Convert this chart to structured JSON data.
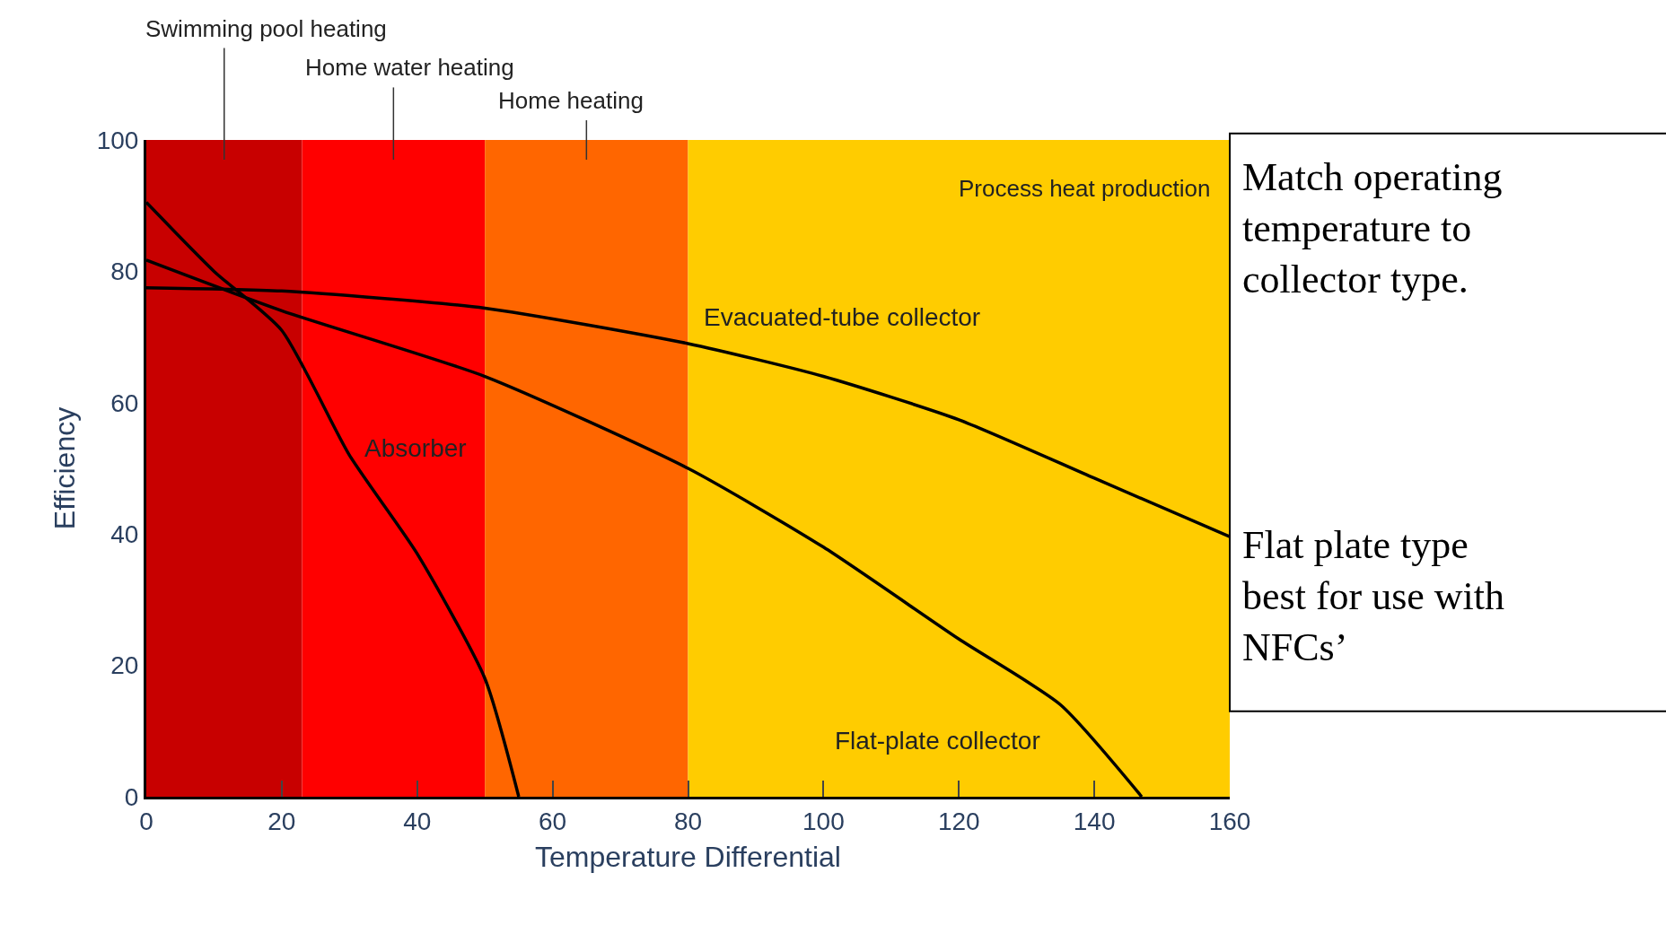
{
  "chart_data": {
    "type": "line",
    "xlabel": "Temperature Differential",
    "ylabel": "Efficiency",
    "xlim": [
      0,
      160
    ],
    "xticks": [
      0,
      20,
      40,
      60,
      80,
      100,
      120,
      140,
      160
    ],
    "ylim": [
      0,
      100
    ],
    "yticks": [
      0,
      20,
      40,
      60,
      80,
      100
    ],
    "grid": false,
    "marker": "none",
    "line_style": "solid",
    "series": [
      {
        "color": "#000000",
        "x": [
          0,
          10,
          20,
          30,
          40,
          50,
          55
        ],
        "values": [
          90.5,
          80,
          71,
          52,
          37,
          18,
          0
        ]
      },
      {
        "color": "#000000",
        "x": [
          0,
          20,
          50,
          80,
          100,
          120,
          135,
          147
        ],
        "values": [
          81.7,
          74,
          64,
          50,
          38,
          24,
          14,
          0
        ]
      },
      {
        "color": "#000000",
        "x": [
          0,
          20,
          50,
          80,
          100,
          120,
          140,
          160
        ],
        "values": [
          77.5,
          77,
          74.4,
          69,
          64,
          57.4,
          48.5,
          39.6
        ]
      }
    ],
    "bands": [
      {
        "axis": "x",
        "from": 0,
        "to": 23,
        "label": "Swimming pool heating",
        "color": "#c80000"
      },
      {
        "axis": "x",
        "from": 23,
        "to": 50,
        "label": "Home water heating",
        "color": "#ff0000"
      },
      {
        "axis": "x",
        "from": 50,
        "to": 80,
        "label": "Home heating",
        "color": "#ff6600"
      },
      {
        "axis": "x",
        "from": 80,
        "to": 160,
        "label": "Process heat production",
        "color": "#ffcc00"
      }
    ],
    "annotations": [
      {
        "text": "Absorber",
        "x": 30,
        "y": 52
      },
      {
        "text": "Evacuated-tube collector",
        "x": 80,
        "y": 69
      },
      {
        "text": "Flat-plate collector",
        "x": 135,
        "y": 14
      },
      "Match operating temperature to collector type.",
      "Flat plate type best for use with NFCs’"
    ]
  }
}
